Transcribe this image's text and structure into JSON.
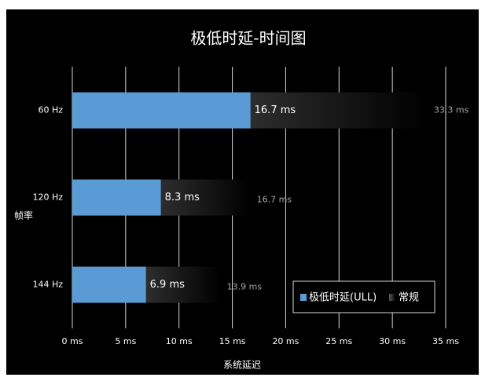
{
  "chart_data": {
    "type": "hbar-overlap",
    "title": "极低时延-时间图",
    "xlabel": "系统延迟",
    "ylabel": "帧率",
    "categories": [
      "60 Hz",
      "120 Hz",
      "144 Hz"
    ],
    "series": [
      {
        "name": "极低时延(ULL)",
        "color": "#5b9bd5",
        "values": [
          16.7,
          8.3,
          6.9
        ],
        "value_labels": [
          "16.7 ms",
          "8.3 ms",
          "6.9 ms"
        ]
      },
      {
        "name": "常规",
        "color": "#5a5a5a",
        "values": [
          33.3,
          16.7,
          13.9
        ],
        "value_labels": [
          "33.3 ms",
          "16.7 ms",
          "13.9 ms"
        ]
      }
    ],
    "xlim": [
      0,
      35
    ],
    "xticks": [
      {
        "value": 0,
        "label": "0 ms"
      },
      {
        "value": 5,
        "label": "5 ms"
      },
      {
        "value": 10,
        "label": "10 ms"
      },
      {
        "value": 15,
        "label": "15 ms"
      },
      {
        "value": 20,
        "label": "20 ms"
      },
      {
        "value": 25,
        "label": "25 ms"
      },
      {
        "value": 30,
        "label": "30 ms"
      },
      {
        "value": 35,
        "label": "35 ms"
      }
    ],
    "grid": true,
    "legend": "lower-right"
  }
}
